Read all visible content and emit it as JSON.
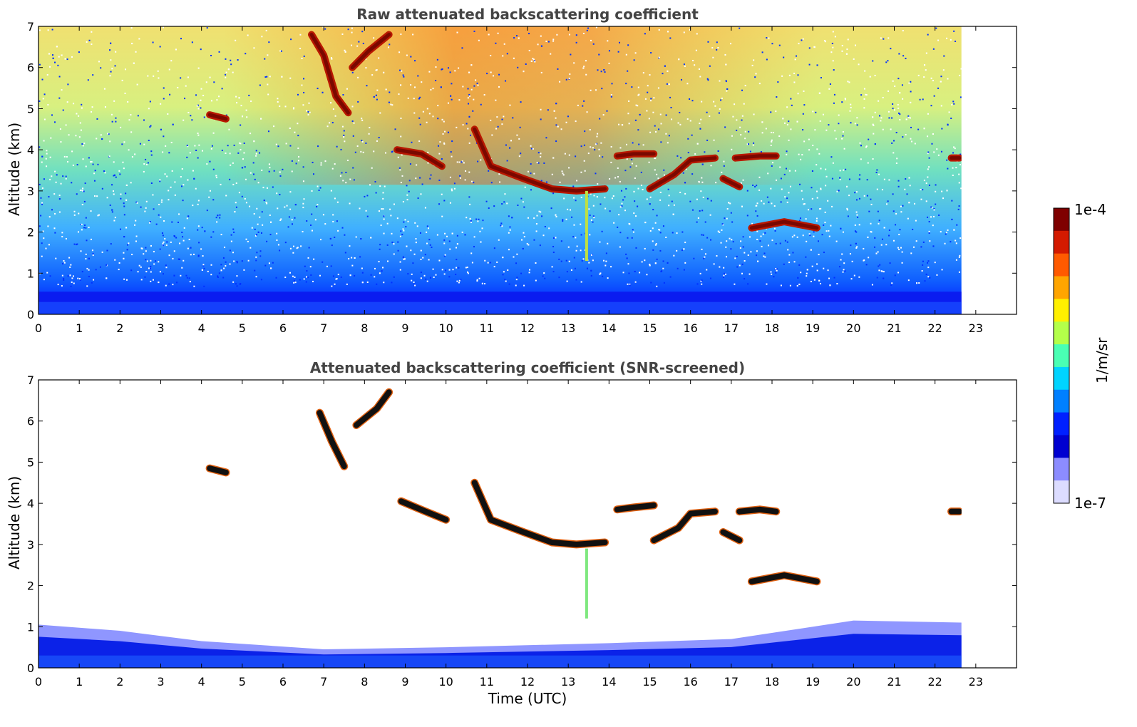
{
  "chart_data": [
    {
      "type": "heatmap",
      "title": "Raw attenuated backscattering coefficient",
      "xlabel": "",
      "ylabel": "Altitude (km)",
      "xlim": [
        0,
        24
      ],
      "ylim": [
        0,
        7
      ],
      "xticks": [
        "0",
        "1",
        "2",
        "3",
        "4",
        "5",
        "6",
        "7",
        "8",
        "9",
        "10",
        "11",
        "12",
        "13",
        "14",
        "15",
        "16",
        "17",
        "18",
        "19",
        "20",
        "21",
        "22",
        "23"
      ],
      "yticks": [
        "0",
        "1",
        "2",
        "3",
        "4",
        "5",
        "6",
        "7"
      ],
      "data_end_time": 22.65,
      "features": [
        {
          "kind": "boundary_layer",
          "t0": 0,
          "t1": 22.65,
          "alt_top": 0.55
        },
        {
          "kind": "cloud",
          "points": [
            [
              4.2,
              4.85
            ],
            [
              4.6,
              4.75
            ]
          ]
        },
        {
          "kind": "cloud",
          "points": [
            [
              6.7,
              6.8
            ],
            [
              7.0,
              6.3
            ],
            [
              7.3,
              5.3
            ],
            [
              7.6,
              4.9
            ]
          ]
        },
        {
          "kind": "cloud",
          "points": [
            [
              7.7,
              6.0
            ],
            [
              8.1,
              6.4
            ],
            [
              8.6,
              6.8
            ]
          ]
        },
        {
          "kind": "cloud",
          "points": [
            [
              8.8,
              4.0
            ],
            [
              9.4,
              3.9
            ],
            [
              9.9,
              3.6
            ]
          ]
        },
        {
          "kind": "cloud",
          "points": [
            [
              10.7,
              4.5
            ],
            [
              11.1,
              3.6
            ],
            [
              11.9,
              3.3
            ],
            [
              12.6,
              3.05
            ],
            [
              13.2,
              3.0
            ],
            [
              13.9,
              3.05
            ]
          ]
        },
        {
          "kind": "cloud",
          "points": [
            [
              14.2,
              3.85
            ],
            [
              14.6,
              3.9
            ],
            [
              15.1,
              3.9
            ]
          ]
        },
        {
          "kind": "cloud",
          "points": [
            [
              15.0,
              3.05
            ],
            [
              15.6,
              3.4
            ],
            [
              16.0,
              3.75
            ],
            [
              16.6,
              3.8
            ]
          ]
        },
        {
          "kind": "cloud",
          "points": [
            [
              16.8,
              3.3
            ],
            [
              17.2,
              3.1
            ]
          ]
        },
        {
          "kind": "cloud",
          "points": [
            [
              17.1,
              3.8
            ],
            [
              17.7,
              3.85
            ],
            [
              18.1,
              3.85
            ]
          ]
        },
        {
          "kind": "cloud",
          "points": [
            [
              17.5,
              2.1
            ],
            [
              18.3,
              2.25
            ],
            [
              19.1,
              2.1
            ]
          ]
        },
        {
          "kind": "cloud",
          "points": [
            [
              22.4,
              3.8
            ],
            [
              22.6,
              3.8
            ]
          ]
        },
        {
          "kind": "virga",
          "t": 13.45,
          "alt_top": 3.0,
          "alt_bottom": 1.3
        }
      ]
    },
    {
      "type": "heatmap",
      "title": "Attenuated backscattering coefficient (SNR-screened)",
      "xlabel": "Time (UTC)",
      "ylabel": "Altitude (km)",
      "xlim": [
        0,
        24
      ],
      "ylim": [
        0,
        7
      ],
      "xticks": [
        "0",
        "1",
        "2",
        "3",
        "4",
        "5",
        "6",
        "7",
        "8",
        "9",
        "10",
        "11",
        "12",
        "13",
        "14",
        "15",
        "16",
        "17",
        "18",
        "19",
        "20",
        "21",
        "22",
        "23"
      ],
      "yticks": [
        "0",
        "1",
        "2",
        "3",
        "4",
        "5",
        "6",
        "7"
      ],
      "data_end_time": 22.65,
      "features": [
        {
          "kind": "boundary_layer_top",
          "points": [
            [
              0,
              1.05
            ],
            [
              2,
              0.9
            ],
            [
              4,
              0.65
            ],
            [
              7,
              0.45
            ],
            [
              10,
              0.5
            ],
            [
              14,
              0.6
            ],
            [
              17,
              0.7
            ],
            [
              20,
              1.15
            ],
            [
              22.65,
              1.1
            ]
          ]
        },
        {
          "kind": "cloud",
          "points": [
            [
              4.2,
              4.85
            ],
            [
              4.6,
              4.75
            ]
          ]
        },
        {
          "kind": "cloud",
          "points": [
            [
              6.9,
              6.2
            ],
            [
              7.2,
              5.5
            ],
            [
              7.5,
              4.9
            ]
          ]
        },
        {
          "kind": "cloud",
          "points": [
            [
              7.8,
              5.9
            ],
            [
              8.3,
              6.3
            ],
            [
              8.6,
              6.7
            ]
          ]
        },
        {
          "kind": "cloud",
          "points": [
            [
              8.9,
              4.05
            ],
            [
              9.5,
              3.8
            ],
            [
              10.0,
              3.6
            ]
          ]
        },
        {
          "kind": "cloud",
          "points": [
            [
              10.7,
              4.5
            ],
            [
              11.1,
              3.6
            ],
            [
              11.9,
              3.3
            ],
            [
              12.6,
              3.05
            ],
            [
              13.2,
              3.0
            ],
            [
              13.9,
              3.05
            ]
          ]
        },
        {
          "kind": "cloud",
          "points": [
            [
              14.2,
              3.85
            ],
            [
              14.6,
              3.9
            ],
            [
              15.1,
              3.95
            ]
          ]
        },
        {
          "kind": "cloud",
          "points": [
            [
              15.1,
              3.1
            ],
            [
              15.7,
              3.4
            ],
            [
              16.0,
              3.75
            ],
            [
              16.6,
              3.8
            ]
          ]
        },
        {
          "kind": "cloud",
          "points": [
            [
              16.8,
              3.3
            ],
            [
              17.2,
              3.1
            ]
          ]
        },
        {
          "kind": "cloud",
          "points": [
            [
              17.2,
              3.8
            ],
            [
              17.7,
              3.85
            ],
            [
              18.1,
              3.8
            ]
          ]
        },
        {
          "kind": "cloud",
          "points": [
            [
              17.5,
              2.1
            ],
            [
              18.3,
              2.25
            ],
            [
              19.1,
              2.1
            ]
          ]
        },
        {
          "kind": "cloud",
          "points": [
            [
              22.4,
              3.8
            ],
            [
              22.6,
              3.8
            ]
          ]
        },
        {
          "kind": "virga",
          "t": 13.45,
          "alt_top": 2.9,
          "alt_bottom": 1.2
        }
      ]
    }
  ],
  "colorbar": {
    "label": "1/m/sr",
    "max_label": "1e-4",
    "min_label": "1e-7",
    "colors": [
      "#7f0000",
      "#d41a00",
      "#ff5a00",
      "#ffa500",
      "#fff000",
      "#b4ff4a",
      "#4affb4",
      "#00d4ff",
      "#0080ff",
      "#0020ff",
      "#0000d0",
      "#8c8cff",
      "#dcdcff"
    ]
  }
}
